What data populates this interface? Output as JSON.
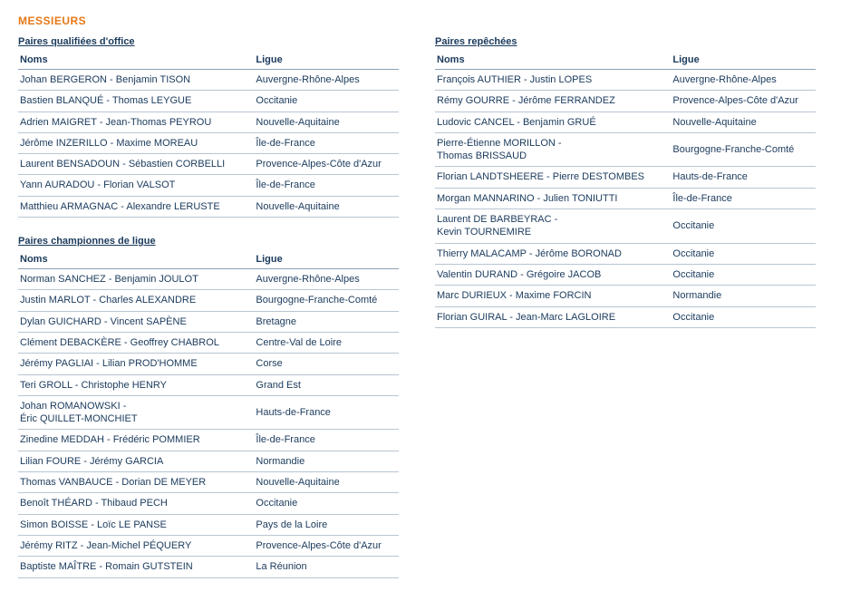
{
  "section_title": "MESSIEURS",
  "colors": {
    "heading": "#e67817",
    "text": "#1a3a5c",
    "border_header": "#8aa0b4",
    "border_row": "#b8c5d1",
    "background": "#ffffff"
  },
  "tables": {
    "qualified": {
      "title": "Paires qualifiées d'office",
      "col_noms": "Noms",
      "col_ligue": "Ligue",
      "rows": [
        {
          "noms": "Johan BERGERON - Benjamin TISON",
          "ligue": "Auvergne-Rhône-Alpes"
        },
        {
          "noms": "Bastien BLANQUÉ - Thomas LEYGUE",
          "ligue": "Occitanie"
        },
        {
          "noms": "Adrien MAIGRET - Jean-Thomas PEYROU",
          "ligue": "Nouvelle-Aquitaine"
        },
        {
          "noms": "Jérôme INZERILLO - Maxime MOREAU",
          "ligue": "Île-de-France"
        },
        {
          "noms": "Laurent BENSADOUN - Sébastien CORBELLI",
          "ligue": "Provence-Alpes-Côte d'Azur"
        },
        {
          "noms": "Yann AURADOU - Florian VALSOT",
          "ligue": "Île-de-France"
        },
        {
          "noms": "Matthieu ARMAGNAC - Alexandre LERUSTE",
          "ligue": "Nouvelle-Aquitaine"
        }
      ]
    },
    "champions": {
      "title": "Paires championnes de ligue",
      "col_noms": "Noms",
      "col_ligue": "Ligue",
      "rows": [
        {
          "noms": "Norman SANCHEZ - Benjamin JOULOT",
          "ligue": "Auvergne-Rhône-Alpes"
        },
        {
          "noms": "Justin MARLOT - Charles ALEXANDRE",
          "ligue": "Bourgogne-Franche-Comté"
        },
        {
          "noms": "Dylan GUICHARD - Vincent SAPÈNE",
          "ligue": "Bretagne"
        },
        {
          "noms": "Clément DEBACKÈRE - Geoffrey CHABROL",
          "ligue": "Centre-Val de Loire"
        },
        {
          "noms": "Jérémy PAGLIAI - Lilian PROD'HOMME",
          "ligue": "Corse"
        },
        {
          "noms": "Teri GROLL - Christophe HENRY",
          "ligue": "Grand Est"
        },
        {
          "noms": "Johan ROMANOWSKI -\nÉric QUILLET-MONCHIET",
          "ligue": "Hauts-de-France"
        },
        {
          "noms": "Zinedine MEDDAH - Frédéric POMMIER",
          "ligue": "Île-de-France"
        },
        {
          "noms": "Lilian FOURE - Jérémy GARCIA",
          "ligue": "Normandie"
        },
        {
          "noms": "Thomas VANBAUCE - Dorian DE MEYER",
          "ligue": "Nouvelle-Aquitaine"
        },
        {
          "noms": "Benoît THÉARD - Thibaud PECH",
          "ligue": "Occitanie"
        },
        {
          "noms": "Simon BOISSE - Loïc LE PANSE",
          "ligue": "Pays de la Loire"
        },
        {
          "noms": "Jérémy RITZ - Jean-Michel PÉQUERY",
          "ligue": "Provence-Alpes-Côte d'Azur"
        },
        {
          "noms": "Baptiste MAÎTRE - Romain GUTSTEIN",
          "ligue": "La Réunion"
        }
      ]
    },
    "repechees": {
      "title": "Paires repêchées",
      "col_noms": "Noms",
      "col_ligue": "Ligue",
      "rows": [
        {
          "noms": "François AUTHIER - Justin LOPES",
          "ligue": "Auvergne-Rhône-Alpes"
        },
        {
          "noms": "Rémy GOURRE - Jérôme FERRANDEZ",
          "ligue": "Provence-Alpes-Côte d'Azur"
        },
        {
          "noms": "Ludovic CANCEL - Benjamin GRUÉ",
          "ligue": "Nouvelle-Aquitaine"
        },
        {
          "noms": "Pierre-Étienne MORILLON -\nThomas BRISSAUD",
          "ligue": "Bourgogne-Franche-Comté"
        },
        {
          "noms": "Florian LANDTSHEERE - Pierre DESTOMBES",
          "ligue": "Hauts-de-France"
        },
        {
          "noms": "Morgan MANNARINO - Julien TONIUTTI",
          "ligue": "Île-de-France"
        },
        {
          "noms": "Laurent DE BARBEYRAC -\nKevin TOURNEMIRE",
          "ligue": "Occitanie"
        },
        {
          "noms": "Thierry MALACAMP - Jérôme BORONAD",
          "ligue": "Occitanie"
        },
        {
          "noms": "Valentin DURAND - Grégoire JACOB",
          "ligue": "Occitanie"
        },
        {
          "noms": "Marc DURIEUX - Maxime FORCIN",
          "ligue": "Normandie"
        },
        {
          "noms": "Florian GUIRAL - Jean-Marc LAGLOIRE",
          "ligue": "Occitanie"
        }
      ]
    }
  }
}
